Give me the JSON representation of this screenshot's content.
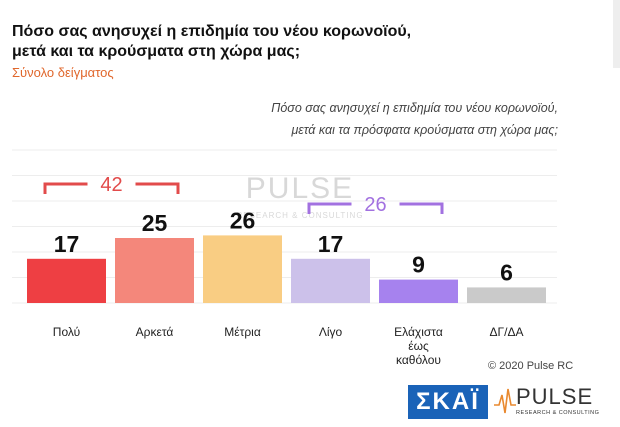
{
  "header": {
    "title_line1": "Πόσο σας ανησυχεί η επιδημία του νέου κορωνοϊού,",
    "title_line2": "μετά και τα κρούσματα στη χώρα μας;",
    "subtitle": "Σύνολο δείγματος",
    "question_line1": "Πόσο σας ανησυχεί η επιδημία του νέου κορωνοϊού,",
    "question_line2": "μετά και τα πρόσφατα κρούσματα στη χώρα μας;"
  },
  "chart_data": {
    "type": "bar",
    "title": "Πόσο σας ανησυχεί η επιδημία του νέου κορωνοϊού, μετά και τα κρούσματα στη χώρα μας;",
    "categories": [
      "Πολύ",
      "Αρκετά",
      "Μέτρια",
      "Λίγο",
      "Ελάχιστα έως καθόλου",
      "ΔΓ/ΔΑ"
    ],
    "category_lines": [
      [
        "Πολύ"
      ],
      [
        "Αρκετά"
      ],
      [
        "Μέτρια"
      ],
      [
        "Λίγο"
      ],
      [
        "Ελάχιστα",
        "έως",
        "καθόλου"
      ],
      [
        "ΔΓ/ΔΑ"
      ]
    ],
    "values": [
      17,
      25,
      26,
      17,
      9,
      6
    ],
    "colors": [
      "#ee3f43",
      "#f4877b",
      "#f9cd83",
      "#ccc1ea",
      "#a682ee",
      "#cacaca"
    ],
    "ylim": [
      0,
      42
    ],
    "grid": true,
    "xlabel": "",
    "ylabel": "",
    "groups": [
      {
        "label": "42",
        "from": 0,
        "to": 1,
        "color": "#e24b4b"
      },
      {
        "label": "26",
        "from": 3,
        "to": 4,
        "color": "#a271e0"
      }
    ]
  },
  "watermark": {
    "brand": "PULSE",
    "tagline": "RESEARCH & CONSULTING"
  },
  "footer": {
    "copyright": "© 2020 Pulse RC",
    "skai_logo": "ΣΚΑΪ",
    "pulse_logo": "PULSE",
    "pulse_tagline": "RESEARCH & CONSULTING"
  },
  "colors": {
    "accent_orange": "#e0672c",
    "skai_blue": "#1a63b8",
    "pulse_orange": "#e9892f"
  }
}
